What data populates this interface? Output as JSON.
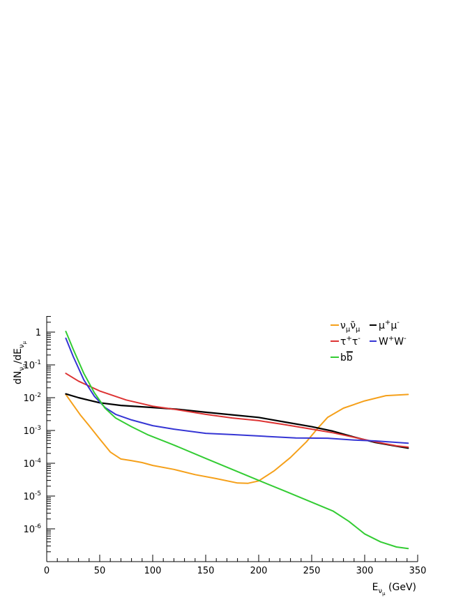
{
  "chart_data": {
    "type": "line",
    "title": "",
    "xlabel": "E",
    "xlabel_sub": "ν",
    "xlabel_subsub": "μ",
    "xlabel_unit": " (GeV)",
    "ylabel": "dN",
    "ylabel_sub": "ν",
    "ylabel_subsub": "μ",
    "ylabel_mid": "/dE",
    "xlim": [
      0,
      350
    ],
    "ylim": [
      1e-07,
      3
    ],
    "yscale": "log",
    "grid": false,
    "legend_position": "top-right",
    "x_ticks": [
      0,
      50,
      100,
      150,
      200,
      250,
      300,
      350
    ],
    "x_tick_labels": [
      "0",
      "50",
      "100",
      "150",
      "200",
      "250",
      "300",
      "350"
    ],
    "y_ticks": [
      {
        "exp": 0,
        "base": "1",
        "sup": ""
      },
      {
        "exp": -1,
        "base": "10",
        "sup": "-1"
      },
      {
        "exp": -2,
        "base": "10",
        "sup": "-2"
      },
      {
        "exp": -3,
        "base": "10",
        "sup": "-3"
      },
      {
        "exp": -4,
        "base": "10",
        "sup": "-4"
      },
      {
        "exp": -5,
        "base": "10",
        "sup": "-5"
      },
      {
        "exp": -6,
        "base": "10",
        "sup": "-6"
      }
    ],
    "series": [
      {
        "name": "ν_μ ν̄_μ",
        "color": "#f5a01a",
        "x": [
          18,
          25,
          32,
          40,
          50,
          60,
          70,
          80,
          90,
          100,
          120,
          140,
          160,
          180,
          190,
          200,
          215,
          230,
          245,
          255,
          265,
          280,
          300,
          320,
          341
        ],
        "y": [
          0.0125,
          0.006,
          0.0029,
          0.0014,
          0.00055,
          0.00022,
          0.000135,
          0.00012,
          0.000105,
          8.6e-05,
          6.5e-05,
          4.5e-05,
          3.4e-05,
          2.5e-05,
          2.45e-05,
          2.9e-05,
          6e-05,
          0.00015,
          0.00045,
          0.0011,
          0.0025,
          0.0048,
          0.008,
          0.0115,
          0.0125
        ]
      },
      {
        "name": "μ⁺μ⁻",
        "color": "#000000",
        "x": [
          18,
          30,
          50,
          70,
          100,
          125,
          150,
          175,
          200,
          225,
          250,
          270,
          290,
          310,
          330,
          341
        ],
        "y": [
          0.013,
          0.01,
          0.007,
          0.0058,
          0.005,
          0.0044,
          0.0036,
          0.003,
          0.0025,
          0.0018,
          0.0013,
          0.00095,
          0.00063,
          0.00043,
          0.00033,
          0.00029
        ]
      },
      {
        "name": "τ⁺τ⁻",
        "color": "#dd3333",
        "x": [
          18,
          30,
          50,
          75,
          100,
          125,
          150,
          175,
          200,
          225,
          250,
          270,
          290,
          310,
          330,
          341
        ],
        "y": [
          0.055,
          0.032,
          0.016,
          0.0085,
          0.0055,
          0.0042,
          0.0031,
          0.0024,
          0.002,
          0.0015,
          0.0011,
          0.00085,
          0.00062,
          0.00045,
          0.00034,
          0.00031
        ]
      },
      {
        "name": "W⁺W⁻",
        "color": "#3535d4",
        "x": [
          18,
          25,
          35,
          45,
          55,
          65,
          80,
          100,
          120,
          150,
          175,
          200,
          235,
          265,
          290,
          310,
          341
        ],
        "y": [
          0.65,
          0.18,
          0.035,
          0.011,
          0.005,
          0.0031,
          0.0021,
          0.0014,
          0.0011,
          0.00082,
          0.00075,
          0.00068,
          0.00059,
          0.00058,
          0.00051,
          0.00048,
          0.00041
        ]
      },
      {
        "name": "bb̄",
        "color": "#33cc33",
        "x": [
          18,
          25,
          35,
          45,
          55,
          65,
          80,
          95,
          120,
          150,
          175,
          200,
          225,
          250,
          270,
          285,
          300,
          315,
          330,
          341
        ],
        "y": [
          1.05,
          0.3,
          0.055,
          0.014,
          0.0048,
          0.0024,
          0.0013,
          0.00075,
          0.00036,
          0.00014,
          6.5e-05,
          3e-05,
          1.4e-05,
          6.5e-06,
          3.5e-06,
          1.7e-06,
          7e-07,
          4e-07,
          2.8e-07,
          2.5e-07
        ]
      }
    ],
    "legend": [
      {
        "key": "numu",
        "color": "#f5a01a"
      },
      {
        "key": "mumu",
        "color": "#000000"
      },
      {
        "key": "tautau",
        "color": "#dd3333"
      },
      {
        "key": "ww",
        "color": "#3535d4"
      },
      {
        "key": "bb",
        "color": "#33cc33"
      }
    ]
  }
}
